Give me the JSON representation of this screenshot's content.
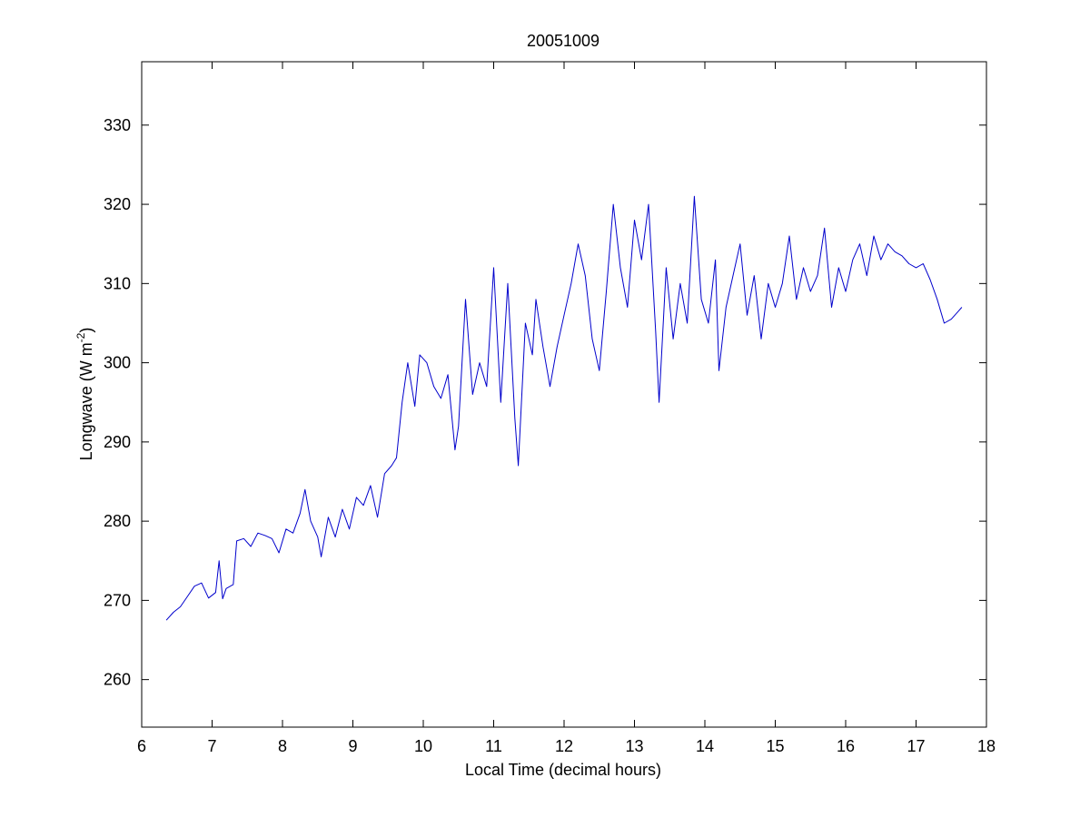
{
  "chart_data": {
    "type": "line",
    "title": "20051009",
    "xlabel": "Local Time (decimal hours)",
    "ylabel_main": "Longwave (W m",
    "ylabel_exponent": "-2",
    "ylabel_close": ")",
    "xlim": [
      6,
      18
    ],
    "ylim": [
      254,
      338
    ],
    "xticks": [
      6,
      7,
      8,
      9,
      10,
      11,
      12,
      13,
      14,
      15,
      16,
      17,
      18
    ],
    "yticks": [
      260,
      270,
      280,
      290,
      300,
      310,
      320,
      330
    ],
    "grid": false,
    "series": [
      {
        "color": "#0000cc",
        "x": [
          6.35,
          6.45,
          6.55,
          6.65,
          6.75,
          6.85,
          6.95,
          7.05,
          7.1,
          7.15,
          7.2,
          7.3,
          7.35,
          7.45,
          7.55,
          7.65,
          7.75,
          7.85,
          7.95,
          8.05,
          8.15,
          8.25,
          8.32,
          8.4,
          8.5,
          8.55,
          8.65,
          8.75,
          8.85,
          8.95,
          9.05,
          9.15,
          9.25,
          9.35,
          9.45,
          9.55,
          9.62,
          9.7,
          9.78,
          9.88,
          9.95,
          10.05,
          10.15,
          10.25,
          10.35,
          10.45,
          10.5,
          10.6,
          10.7,
          10.8,
          10.9,
          11.0,
          11.1,
          11.2,
          11.3,
          11.35,
          11.45,
          11.55,
          11.6,
          11.7,
          11.8,
          11.9,
          12.0,
          12.1,
          12.2,
          12.3,
          12.4,
          12.5,
          12.6,
          12.7,
          12.8,
          12.9,
          13.0,
          13.1,
          13.2,
          13.3,
          13.35,
          13.45,
          13.55,
          13.65,
          13.75,
          13.85,
          13.95,
          14.05,
          14.15,
          14.2,
          14.3,
          14.4,
          14.5,
          14.6,
          14.7,
          14.8,
          14.9,
          15.0,
          15.1,
          15.2,
          15.3,
          15.4,
          15.5,
          15.6,
          15.7,
          15.8,
          15.9,
          16.0,
          16.1,
          16.2,
          16.3,
          16.4,
          16.5,
          16.6,
          16.7,
          16.8,
          16.9,
          17.0,
          17.1,
          17.2,
          17.3,
          17.4,
          17.5,
          17.6,
          17.65
        ],
        "values": [
          267.5,
          268.5,
          269.2,
          270.5,
          271.8,
          272.2,
          270.3,
          271.0,
          275.0,
          270.2,
          271.5,
          272.0,
          277.5,
          277.8,
          276.8,
          278.5,
          278.2,
          277.8,
          276.0,
          279.0,
          278.5,
          281.0,
          284.0,
          280.0,
          278.0,
          275.5,
          280.5,
          278.0,
          281.5,
          279.0,
          283.0,
          282.0,
          284.5,
          280.5,
          286.0,
          287.0,
          288.0,
          295.0,
          300.0,
          294.5,
          301.0,
          300.0,
          297.0,
          295.5,
          298.5,
          289.0,
          292.0,
          308.0,
          296.0,
          300.0,
          297.0,
          312.0,
          295.0,
          310.0,
          293.0,
          287.0,
          305.0,
          301.0,
          308.0,
          302.0,
          297.0,
          302.0,
          306.0,
          310.0,
          315.0,
          311.0,
          303.0,
          299.0,
          309.0,
          320.0,
          312.0,
          307.0,
          318.0,
          313.0,
          320.0,
          304.0,
          295.0,
          312.0,
          303.0,
          310.0,
          305.0,
          321.0,
          308.0,
          305.0,
          313.0,
          299.0,
          307.0,
          311.0,
          315.0,
          306.0,
          311.0,
          303.0,
          310.0,
          307.0,
          310.0,
          316.0,
          308.0,
          312.0,
          309.0,
          311.0,
          317.0,
          307.0,
          312.0,
          309.0,
          313.0,
          315.0,
          311.0,
          316.0,
          313.0,
          315.0,
          314.0,
          313.5,
          312.5,
          312.0,
          312.5,
          310.5,
          308.0,
          305.0,
          305.5,
          306.5,
          307.0
        ]
      }
    ]
  }
}
